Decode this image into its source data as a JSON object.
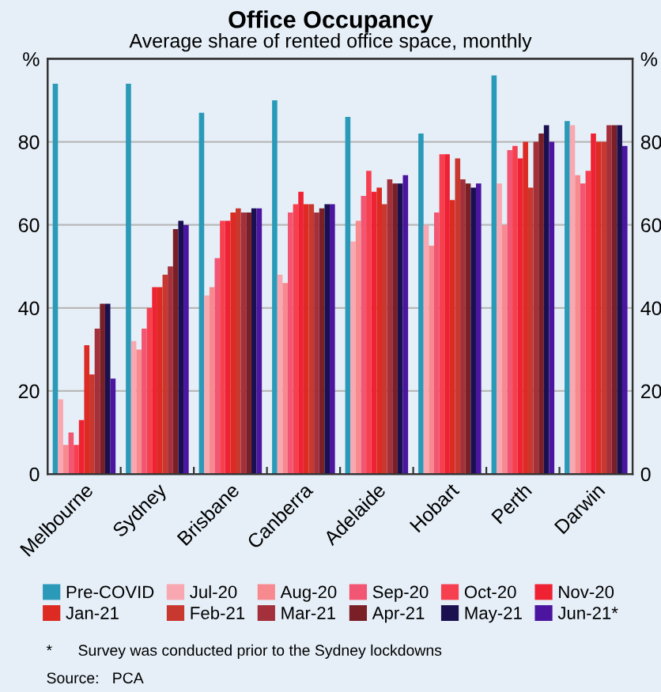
{
  "chart_data": {
    "type": "bar",
    "title": "Office Occupancy",
    "subtitle": "Average share of rented office space, monthly",
    "categories": [
      "Melbourne",
      "Sydney",
      "Brisbane",
      "Canberra",
      "Adelaide",
      "Hobart",
      "Perth",
      "Darwin"
    ],
    "series": [
      {
        "name": "Pre-COVID",
        "color": "#2a9ab8",
        "values": [
          94,
          94,
          87,
          90,
          86,
          82,
          96,
          85
        ]
      },
      {
        "name": "Jul-20",
        "color": "#f9a7b0",
        "values": [
          18,
          32,
          43,
          48,
          56,
          60,
          70,
          84
        ]
      },
      {
        "name": "Aug-20",
        "color": "#f78a8f",
        "values": [
          7,
          30,
          45,
          46,
          61,
          55,
          60,
          72
        ]
      },
      {
        "name": "Sep-20",
        "color": "#f25672",
        "values": [
          10,
          35,
          52,
          63,
          67,
          63,
          78,
          70
        ]
      },
      {
        "name": "Oct-20",
        "color": "#f7404f",
        "values": [
          7,
          40,
          61,
          65,
          73,
          77,
          79,
          73
        ]
      },
      {
        "name": "Nov-20",
        "color": "#ef2233",
        "values": [
          13,
          45,
          61,
          68,
          68,
          77,
          76,
          82
        ]
      },
      {
        "name": "Jan-21",
        "color": "#dd2a22",
        "values": [
          31,
          45,
          63,
          65,
          69,
          66,
          80,
          80
        ]
      },
      {
        "name": "Feb-21",
        "color": "#c8382e",
        "values": [
          24,
          48,
          64,
          65,
          65,
          76,
          69,
          80
        ]
      },
      {
        "name": "Mar-21",
        "color": "#a3303a",
        "values": [
          35,
          50,
          63,
          63,
          71,
          71,
          80,
          84
        ]
      },
      {
        "name": "Apr-21",
        "color": "#7a1f26",
        "values": [
          41,
          59,
          63,
          64,
          70,
          70,
          82,
          84
        ]
      },
      {
        "name": "May-21",
        "color": "#1a1050",
        "values": [
          41,
          61,
          64,
          65,
          70,
          69,
          84,
          84
        ]
      },
      {
        "name": "Jun-21*",
        "color": "#4b15a0",
        "values": [
          23,
          60,
          64,
          65,
          72,
          70,
          80,
          79
        ]
      }
    ],
    "ylim": [
      0,
      100
    ],
    "yticks": [
      0,
      20,
      40,
      60,
      80,
      {
        "value": 100,
        "label": "%"
      }
    ],
    "y2lim": [
      0,
      100
    ],
    "y2ticks": [
      0,
      20,
      40,
      60,
      80,
      {
        "value": 100,
        "label": "%"
      }
    ],
    "grid": "y",
    "legend": "bottom",
    "annotations": [
      "*      Survey was conducted prior to the Sydney lockdowns",
      "Source:   PCA"
    ]
  }
}
